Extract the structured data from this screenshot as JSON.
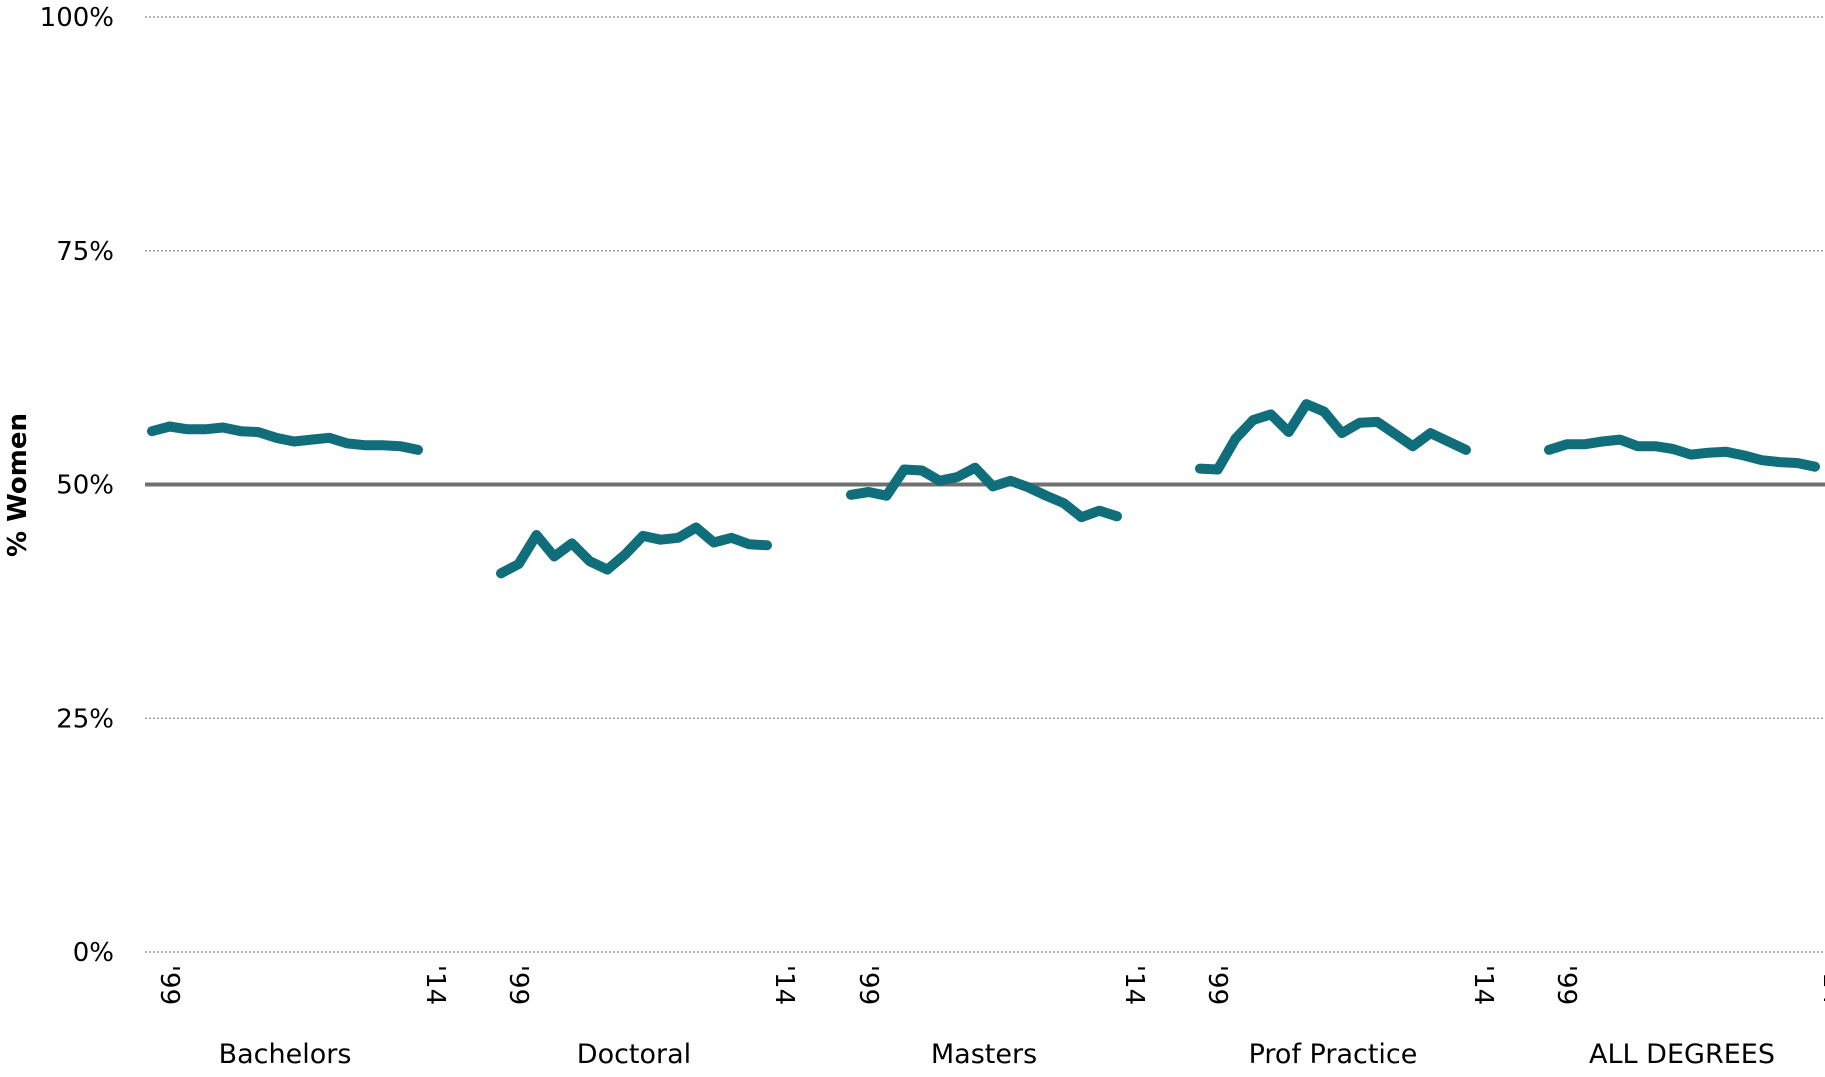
{
  "chart_data": {
    "type": "line",
    "ylabel": "% Women",
    "ylim": [
      0,
      100
    ],
    "y_ticks": [
      "0%",
      "25%",
      "50%",
      "75%",
      "100%"
    ],
    "y_tick_values": [
      0,
      25,
      50,
      75,
      100
    ],
    "grid": "horizontal dotted",
    "reference_line": 50,
    "x_years": [
      1999,
      2000,
      2001,
      2002,
      2003,
      2004,
      2005,
      2006,
      2007,
      2008,
      2009,
      2010,
      2011,
      2012,
      2013,
      2014
    ],
    "x_tick_start": "'99",
    "x_tick_end": "'14",
    "groups": [
      {
        "label": "Bachelors",
        "values": [
          55.7,
          56.2,
          55.9,
          55.9,
          56.1,
          55.7,
          55.6,
          55.0,
          54.6,
          54.8,
          55.0,
          54.4,
          54.2,
          54.2,
          54.1,
          53.7
        ]
      },
      {
        "label": "Doctoral",
        "values": [
          40.5,
          41.5,
          44.6,
          42.3,
          43.7,
          41.8,
          40.9,
          42.5,
          44.5,
          44.1,
          44.3,
          45.4,
          43.8,
          44.3,
          43.6,
          43.5
        ]
      },
      {
        "label": "Masters",
        "values": [
          48.9,
          49.2,
          48.8,
          51.6,
          51.5,
          50.4,
          50.8,
          51.8,
          49.8,
          50.4,
          49.7,
          48.8,
          48.0,
          46.5,
          47.2,
          46.6
        ]
      },
      {
        "label": "Prof Practice",
        "values": [
          51.7,
          51.6,
          54.9,
          56.9,
          57.5,
          55.6,
          58.6,
          57.8,
          55.5,
          56.6,
          56.7,
          55.4,
          54.1,
          55.5,
          54.6,
          53.7
        ]
      },
      {
        "label": "ALL DEGREES",
        "values": [
          53.7,
          54.3,
          54.3,
          54.6,
          54.8,
          54.1,
          54.1,
          53.8,
          53.2,
          53.4,
          53.5,
          53.1,
          52.6,
          52.4,
          52.3,
          51.9
        ]
      }
    ],
    "colors": {
      "series": "#0f6e7a",
      "reference_line": "#707070",
      "grid": "#8c8c8c"
    }
  }
}
